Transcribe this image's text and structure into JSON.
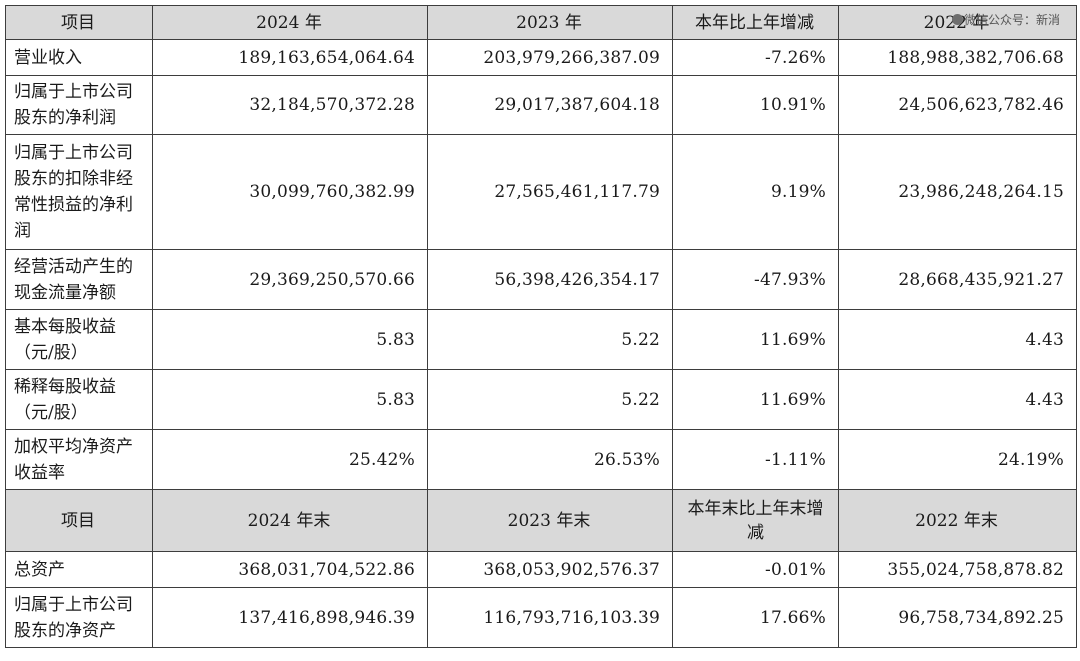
{
  "watermark": "微信公众号：新消",
  "header1": [
    "项目",
    "2024 年",
    "2023 年",
    "本年比上年增减",
    "2022 年"
  ],
  "rows1": [
    {
      "label": "营业收入",
      "v2024": "189,163,654,064.64",
      "v2023": "203,979,266,387.09",
      "change": "-7.26%",
      "v2022": "188,988,382,706.68"
    },
    {
      "label": "归属于上市公司股东的净利润",
      "v2024": "32,184,570,372.28",
      "v2023": "29,017,387,604.18",
      "change": "10.91%",
      "v2022": "24,506,623,782.46"
    },
    {
      "label": "归属于上市公司股东的扣除非经常性损益的净利润",
      "v2024": "30,099,760,382.99",
      "v2023": "27,565,461,117.79",
      "change": "9.19%",
      "v2022": "23,986,248,264.15"
    },
    {
      "label": "经营活动产生的现金流量净额",
      "v2024": "29,369,250,570.66",
      "v2023": "56,398,426,354.17",
      "change": "-47.93%",
      "v2022": "28,668,435,921.27"
    },
    {
      "label": "基本每股收益（元/股）",
      "v2024": "5.83",
      "v2023": "5.22",
      "change": "11.69%",
      "v2022": "4.43"
    },
    {
      "label": "稀释每股收益（元/股）",
      "v2024": "5.83",
      "v2023": "5.22",
      "change": "11.69%",
      "v2022": "4.43"
    },
    {
      "label": "加权平均净资产收益率",
      "v2024": "25.42%",
      "v2023": "26.53%",
      "change": "-1.11%",
      "v2022": "24.19%"
    }
  ],
  "header2": [
    "项目",
    "2024 年末",
    "2023 年末",
    "本年末比上年末增减",
    "2022 年末"
  ],
  "rows2": [
    {
      "label": "总资产",
      "v2024": "368,031,704,522.86",
      "v2023": "368,053,902,576.37",
      "change": "-0.01%",
      "v2022": "355,024,758,878.82"
    },
    {
      "label": "归属于上市公司股东的净资产",
      "v2024": "137,416,898,946.39",
      "v2023": "116,793,716,103.39",
      "change": "17.66%",
      "v2022": "96,758,734,892.25"
    }
  ]
}
